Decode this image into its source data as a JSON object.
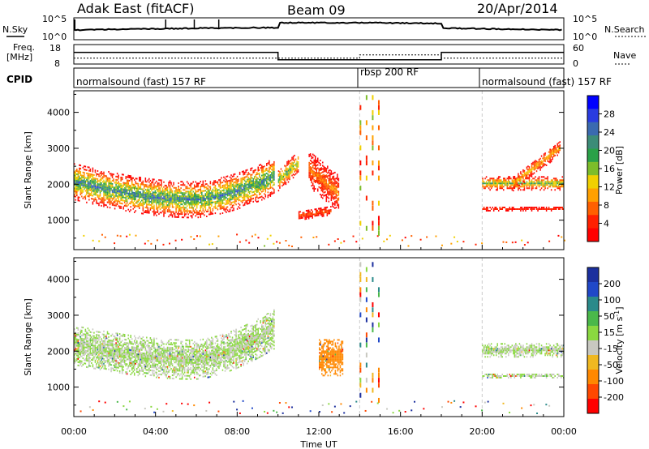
{
  "header": {
    "station": "Adak East (fitACF)",
    "beam": "Beam 09",
    "date": "20/Apr/2014"
  },
  "noise_panel": {
    "left_label": "N.Sky",
    "right_label": "N.Search",
    "left_ticks": [
      "10^5",
      "10^0"
    ],
    "right_ticks": [
      "10^5",
      "10^0"
    ],
    "plotted": "(estimated) sky noise step levels",
    "trace_color": "#000000"
  },
  "freq_panel": {
    "left_label_line1": "Freq.",
    "left_label_line2": "[MHz]",
    "right_label": "Nave",
    "left_ticks": [
      "18",
      "8"
    ],
    "right_ticks": [
      "60",
      "0"
    ]
  },
  "cpid_panel": {
    "label": "CPID",
    "segments": [
      {
        "text": "normalsound (fast) 157 RF"
      },
      {
        "text": "rbsp 200 RF"
      },
      {
        "text": "normalsound (fast) 157 RF"
      }
    ]
  },
  "axes": {
    "ylabel": "Slant Range [km]",
    "xlabel": "Time UT",
    "x_ticks": [
      "00:00",
      "04:00",
      "08:00",
      "12:00",
      "16:00",
      "20:00",
      "00:00"
    ],
    "y_ticks": [
      "1000",
      "2000",
      "3000",
      "4000"
    ]
  },
  "power_colorbar": {
    "label": "Power [dB]",
    "ticks": [
      "4",
      "8",
      "12",
      "16",
      "20",
      "24",
      "28"
    ],
    "colors": [
      "#0000ff",
      "#2a3ce0",
      "#3a6ab0",
      "#3c8c78",
      "#2aa148",
      "#7dbd2a",
      "#f0d000",
      "#ffa000",
      "#ff6000",
      "#ff2000",
      "#ff0000"
    ]
  },
  "velocity_colorbar": {
    "label": "Velocity [m s",
    "label_sup": "-1",
    "label_end": "]",
    "ticks": [
      "200",
      "100",
      "50",
      "15",
      "-15",
      "-50",
      "-100",
      "-200"
    ],
    "colors": [
      "#1b2f9e",
      "#2048c8",
      "#2a8a8a",
      "#4ab84a",
      "#8ad840",
      "#c8c8c0",
      "#f0b820",
      "#ff8800",
      "#ff4800",
      "#ff0000"
    ]
  },
  "chart_data": {
    "type": "heatmap",
    "title": "Adak East (fitACF)",
    "xlabel": "Time UT",
    "ylabel": "Slant Range [km]",
    "xlim": [
      0,
      24
    ],
    "ylim": [
      180,
      4600
    ],
    "panels": [
      {
        "name": "Power",
        "units": "dB",
        "clim": [
          0,
          32
        ],
        "echo_bands": [
          {
            "t_start": 0.0,
            "t_end": 9.8,
            "range_center_start": 2050,
            "range_center_mid": 1550,
            "range_center_end": 2200,
            "width_km": 500,
            "peak_db": 26
          },
          {
            "t_start": 10.0,
            "t_end": 11.0,
            "range_center_start": 2100,
            "range_center_end": 2600,
            "width_km": 300,
            "peak_db": 22
          },
          {
            "t_start": 11.5,
            "t_end": 13.0,
            "range_center_start": 2400,
            "range_center_end": 1700,
            "width_km": 500,
            "peak_db": 10
          },
          {
            "t_start": 11.0,
            "t_end": 12.6,
            "range_center_start": 1100,
            "range_center_end": 1250,
            "width_km": 120,
            "peak_db": 8
          },
          {
            "t_start": 20.0,
            "t_end": 24.0,
            "range_center_start": 2000,
            "range_center_end": 2000,
            "width_km": 180,
            "peak_db": 20
          },
          {
            "t_start": 20.0,
            "t_end": 24.0,
            "range_center_start": 1300,
            "range_center_end": 1300,
            "width_km": 60,
            "peak_db": 6
          },
          {
            "t_start": 21.5,
            "t_end": 23.8,
            "range_center_start": 2000,
            "range_center_end": 3000,
            "width_km": 200,
            "peak_db": 14
          }
        ]
      },
      {
        "name": "Velocity",
        "units": "m s^-1",
        "clim": [
          -250,
          250
        ],
        "echo_bands": [
          {
            "t_start": 0.0,
            "t_end": 9.8,
            "range_center_start": 2150,
            "range_center_mid": 1750,
            "range_center_end": 2600,
            "width_km": 550,
            "velocity": 0
          },
          {
            "t_start": 12.0,
            "t_end": 13.2,
            "range_center_start": 1800,
            "range_center_end": 1800,
            "width_km": 500,
            "velocity": -120
          },
          {
            "t_start": 20.0,
            "t_end": 24.0,
            "range_center_start": 2000,
            "range_center_end": 2000,
            "width_km": 180,
            "velocity": 0
          },
          {
            "t_start": 20.0,
            "t_end": 24.0,
            "range_center_start": 1300,
            "range_center_end": 1300,
            "width_km": 60,
            "velocity": 0
          }
        ]
      }
    ],
    "cpid_changes_ut": [
      14.0,
      20.0
    ],
    "freq_mhz": [
      {
        "t_start": 0.0,
        "t_end": 10.0,
        "value": 14
      },
      {
        "t_start": 10.0,
        "t_end": 18.0,
        "value": 10.2
      },
      {
        "t_start": 18.0,
        "t_end": 24.0,
        "value": 14
      }
    ],
    "nave": [
      {
        "t_start": 0.0,
        "t_end": 14.0,
        "value": 18
      },
      {
        "t_start": 14.0,
        "t_end": 18.0,
        "value": 28
      },
      {
        "t_start": 18.0,
        "t_end": 24.0,
        "value": 18
      }
    ]
  }
}
